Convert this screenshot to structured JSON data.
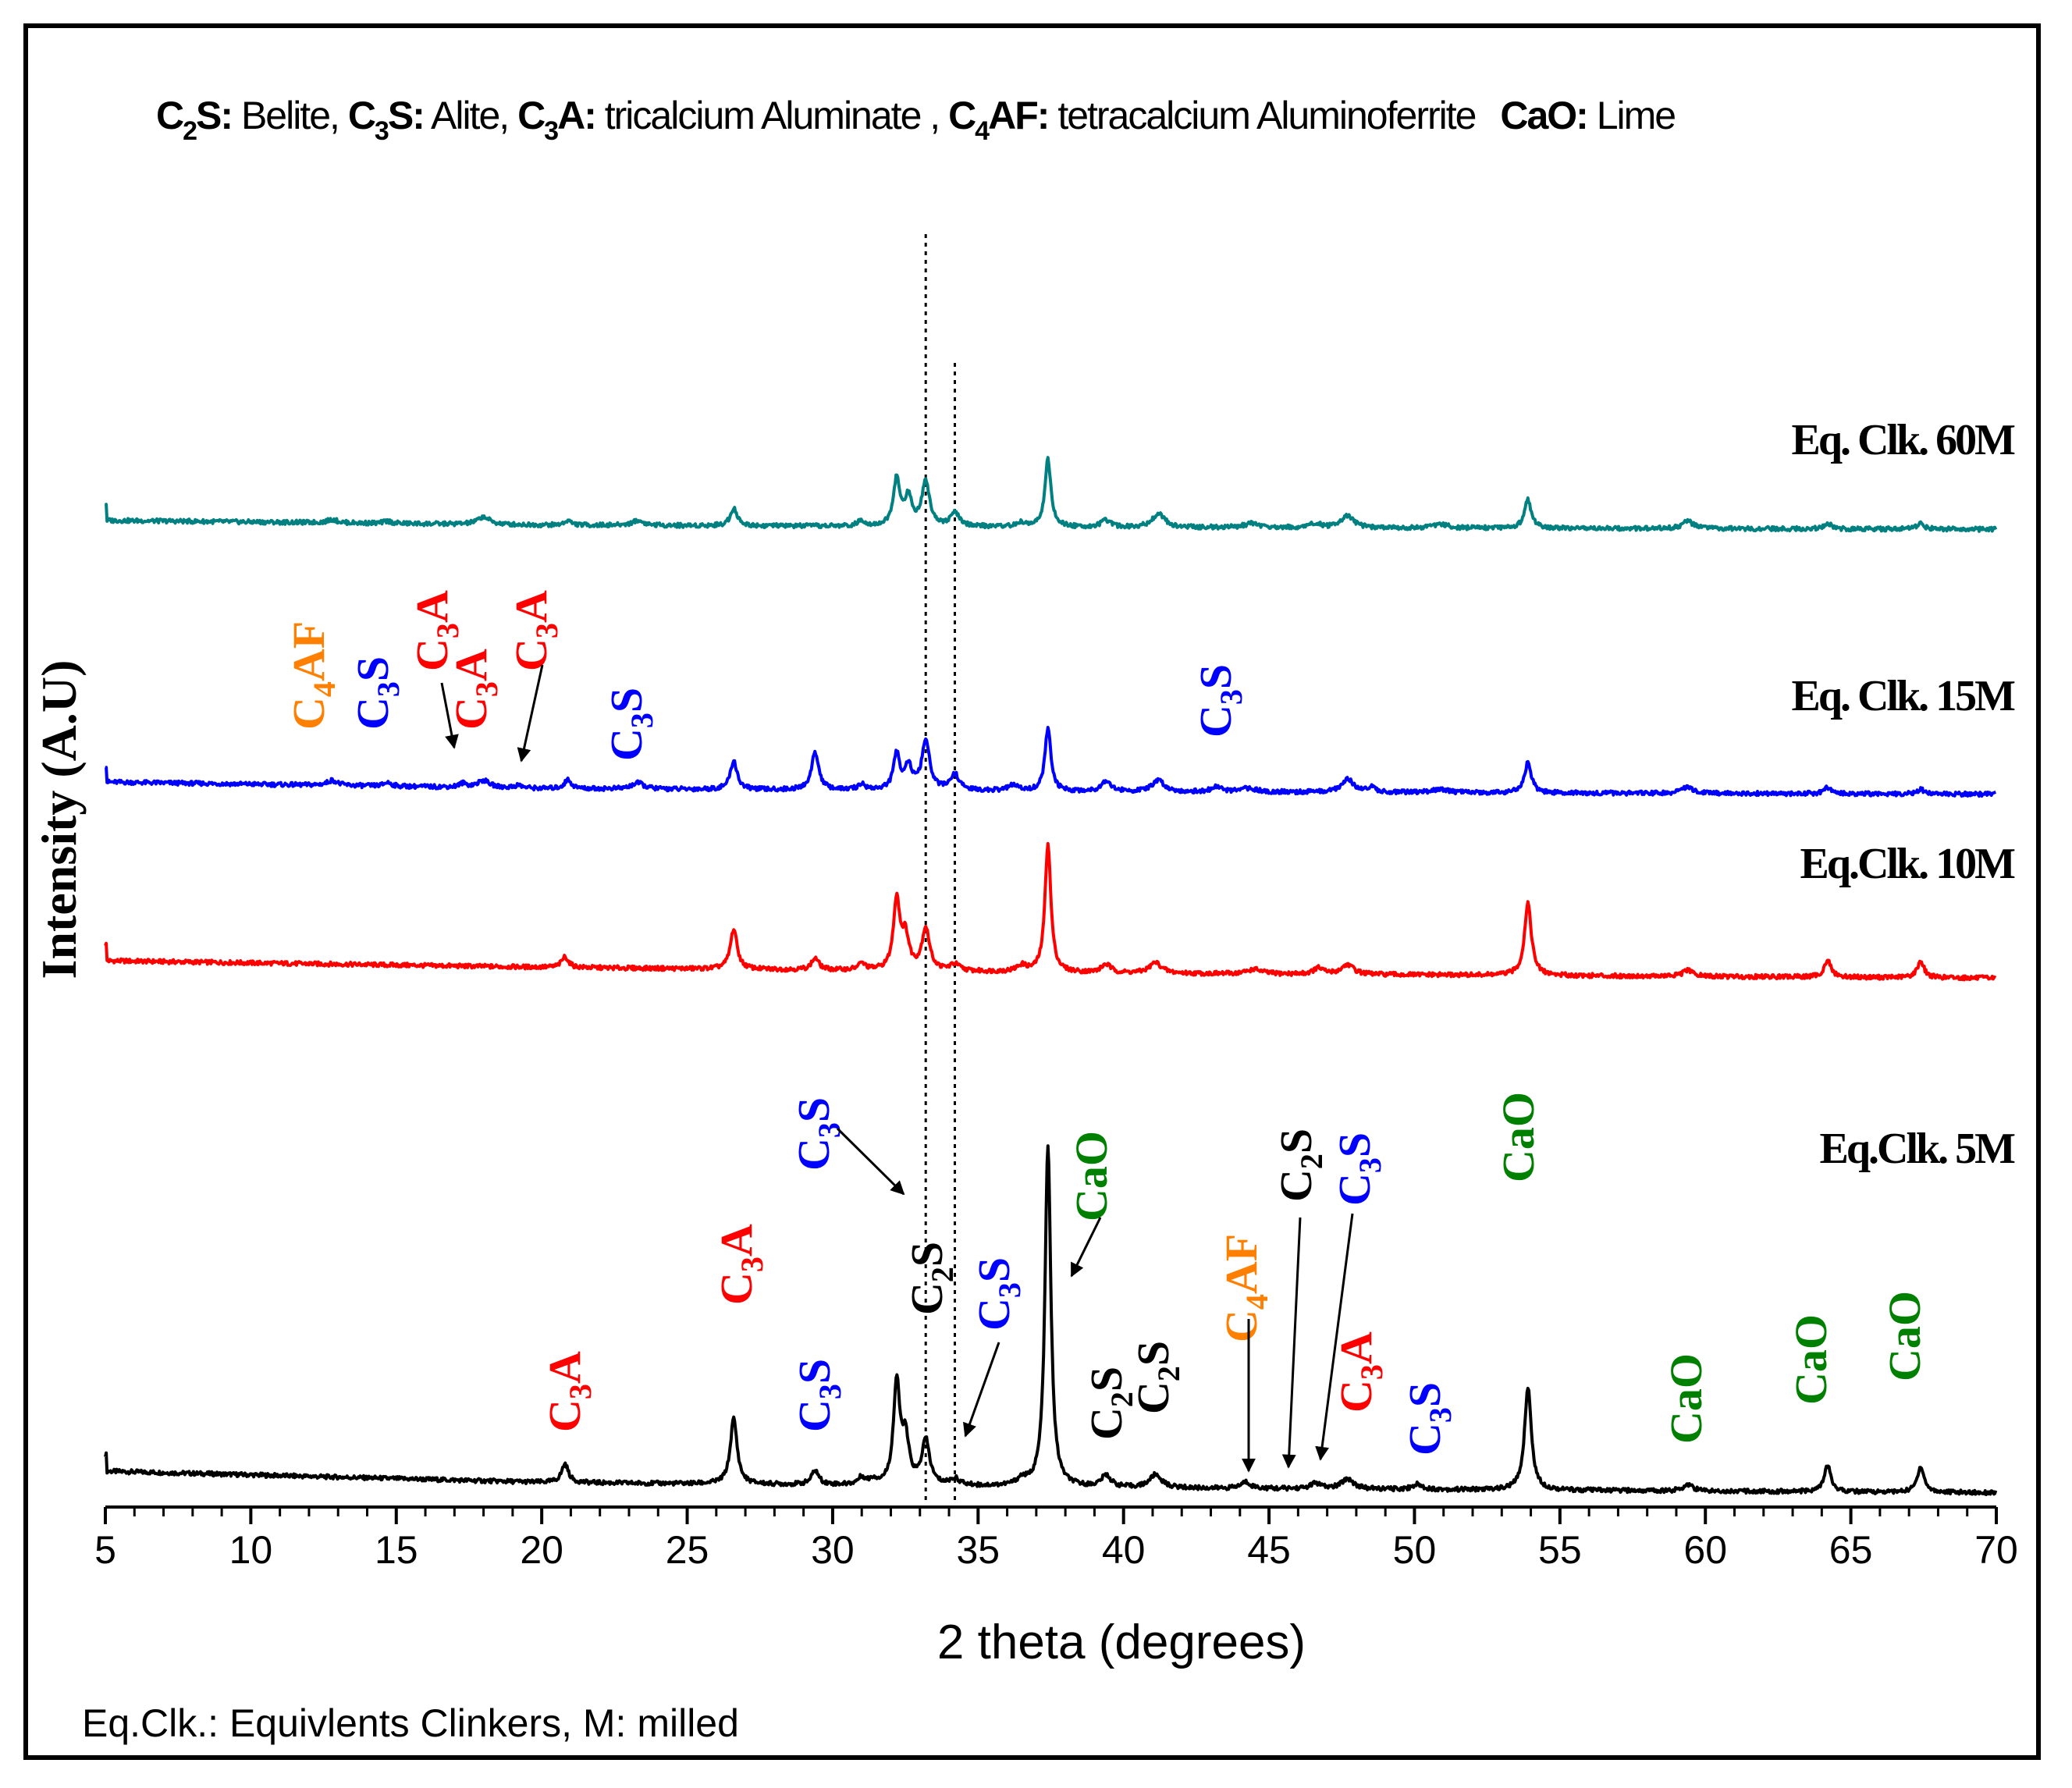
{
  "legend_text": {
    "c2s_code": "C2S:",
    "c2s_name": "Belite,",
    "c3s_code": "C3S:",
    "c3s_name": "Alite,",
    "c3a_code": "C3A:",
    "c3a_name": "tricalcium Aluminate ,",
    "c4af_code": "C4AF:",
    "c4af_name": "tetracalcium Aluminoferrite",
    "cao_code": "CaO:",
    "cao_name": "Lime"
  },
  "footnote": "Eq.Clk.:  Equivlents Clinkers, M: milled",
  "colors": {
    "c3a": "#ff0000",
    "c3s": "#0000ff",
    "c2s": "#000000",
    "c4af": "#ff8000",
    "cao": "#008000"
  },
  "chart_data": {
    "type": "line",
    "xlabel": "2 theta (degrees)",
    "ylabel": "Intensity (A.U)",
    "xlim": [
      5,
      70
    ],
    "ylim": [
      0,
      100
    ],
    "x_ticks": [
      5,
      10,
      15,
      20,
      25,
      30,
      35,
      40,
      45,
      50,
      55,
      60,
      65,
      70
    ],
    "reference_lines_2theta": [
      33.2,
      34.2
    ],
    "series": [
      {
        "name": "Eq.Clk. 5M",
        "color": "#000000",
        "baseline": [
          [
            5,
            5.0
          ],
          [
            20,
            2.6
          ],
          [
            40,
            1.4
          ],
          [
            70,
            0.4
          ]
        ],
        "peaks": [
          [
            20.8,
            4.0,
            0.14
          ],
          [
            26.6,
            14.0,
            0.14
          ],
          [
            29.4,
            3.0,
            0.15
          ],
          [
            31.0,
            1.5,
            0.15
          ],
          [
            31.4,
            1.0,
            0.15
          ],
          [
            32.2,
            21.5,
            0.13
          ],
          [
            32.5,
            9.5,
            0.15
          ],
          [
            33.2,
            9.5,
            0.16
          ],
          [
            34.2,
            1.4,
            0.2
          ],
          [
            36.5,
            1.3,
            0.2
          ],
          [
            37.4,
            73.0,
            0.12
          ],
          [
            39.4,
            2.5,
            0.2
          ],
          [
            41.1,
            2.8,
            0.25
          ],
          [
            44.2,
            1.4,
            0.2
          ],
          [
            46.6,
            1.2,
            0.2
          ],
          [
            47.7,
            2.2,
            0.25
          ],
          [
            50.1,
            1.1,
            0.2
          ],
          [
            53.9,
            22.0,
            0.14
          ],
          [
            59.4,
            1.4,
            0.2
          ],
          [
            64.2,
            5.5,
            0.14
          ],
          [
            67.4,
            5.5,
            0.14
          ]
        ]
      },
      {
        "name": "Eq.Clk. 10M",
        "color": "#ff0000",
        "baseline": [
          [
            5,
            4.0
          ],
          [
            20,
            2.6
          ],
          [
            40,
            1.3
          ],
          [
            70,
            0.3
          ]
        ],
        "peaks": [
          [
            20.8,
            2.3,
            0.14
          ],
          [
            26.6,
            8.6,
            0.14
          ],
          [
            29.4,
            2.5,
            0.15
          ],
          [
            31.0,
            1.4,
            0.15
          ],
          [
            32.2,
            15.0,
            0.13
          ],
          [
            32.5,
            7.0,
            0.15
          ],
          [
            33.2,
            9.0,
            0.16
          ],
          [
            34.2,
            1.4,
            0.2
          ],
          [
            36.5,
            1.3,
            0.2
          ],
          [
            37.4,
            27.5,
            0.12
          ],
          [
            39.4,
            1.8,
            0.2
          ],
          [
            41.1,
            2.3,
            0.25
          ],
          [
            44.5,
            1.0,
            0.3
          ],
          [
            46.7,
            1.3,
            0.2
          ],
          [
            47.7,
            2.1,
            0.25
          ],
          [
            53.9,
            15.6,
            0.14
          ],
          [
            59.4,
            1.3,
            0.2
          ],
          [
            64.2,
            3.6,
            0.14
          ],
          [
            67.4,
            3.5,
            0.14
          ]
        ]
      },
      {
        "name": "Eq. Clk. 15M",
        "color": "#0000ff",
        "baseline": [
          [
            5,
            3.0
          ],
          [
            20,
            1.6
          ],
          [
            40,
            0.9
          ],
          [
            70,
            0.4
          ]
        ],
        "peaks": [
          [
            12.8,
            1.1,
            0.2
          ],
          [
            14.7,
            0.8,
            0.15
          ],
          [
            17.3,
            0.8,
            0.15
          ],
          [
            18.0,
            1.5,
            0.25
          ],
          [
            19.2,
            0.6,
            0.15
          ],
          [
            20.9,
            1.9,
            0.14
          ],
          [
            23.3,
            1.3,
            0.25
          ],
          [
            26.6,
            6.1,
            0.14
          ],
          [
            29.4,
            8.0,
            0.15
          ],
          [
            31.0,
            1.2,
            0.15
          ],
          [
            32.2,
            7.5,
            0.13
          ],
          [
            32.6,
            5.0,
            0.15
          ],
          [
            33.2,
            10.5,
            0.16
          ],
          [
            34.2,
            3.4,
            0.18
          ],
          [
            36.2,
            1.2,
            0.2
          ],
          [
            37.4,
            13.5,
            0.12
          ],
          [
            39.4,
            2.3,
            0.2
          ],
          [
            41.2,
            2.4,
            0.25
          ],
          [
            43.2,
            1.1,
            0.2
          ],
          [
            44.3,
            0.8,
            0.3
          ],
          [
            47.7,
            2.8,
            0.25
          ],
          [
            48.5,
            1.0,
            0.2
          ],
          [
            50.9,
            0.7,
            0.3
          ],
          [
            53.9,
            6.5,
            0.14
          ],
          [
            59.4,
            1.5,
            0.2
          ],
          [
            64.2,
            1.4,
            0.14
          ],
          [
            67.4,
            1.0,
            0.14
          ]
        ]
      },
      {
        "name": "Eq. Clk. 60M",
        "color": "#008080",
        "baseline": [
          [
            5,
            2.2
          ],
          [
            20,
            1.2
          ],
          [
            40,
            0.7
          ],
          [
            70,
            0.3
          ]
        ],
        "peaks": [
          [
            12.8,
            0.7,
            0.2
          ],
          [
            14.7,
            0.5,
            0.15
          ],
          [
            18.0,
            1.6,
            0.25
          ],
          [
            20.9,
            1.0,
            0.14
          ],
          [
            23.3,
            1.0,
            0.25
          ],
          [
            26.6,
            3.8,
            0.14
          ],
          [
            31.0,
            1.2,
            0.15
          ],
          [
            32.2,
            10.0,
            0.13
          ],
          [
            32.6,
            6.0,
            0.15
          ],
          [
            33.2,
            9.5,
            0.16
          ],
          [
            34.2,
            2.8,
            0.18
          ],
          [
            36.5,
            0.8,
            0.2
          ],
          [
            37.4,
            14.5,
            0.12
          ],
          [
            39.4,
            1.4,
            0.2
          ],
          [
            41.2,
            3.0,
            0.25
          ],
          [
            44.4,
            0.9,
            0.3
          ],
          [
            46.6,
            1.0,
            0.2
          ],
          [
            47.7,
            2.6,
            0.25
          ],
          [
            50.9,
            0.8,
            0.3
          ],
          [
            53.9,
            6.1,
            0.14
          ],
          [
            59.4,
            1.7,
            0.2
          ],
          [
            64.2,
            1.3,
            0.14
          ],
          [
            67.4,
            1.2,
            0.14
          ]
        ]
      }
    ],
    "series_labels": [
      "Eq. Clk. 60M",
      "Eq. Clk. 15M",
      "Eq.Clk. 10M",
      "Eq.Clk. 5M"
    ],
    "annotations": [
      {
        "phase": "C4AF",
        "base": "C",
        "sub": "4",
        "rest": "AF",
        "color_key": "c4af",
        "two_theta": 12.8,
        "on_series": "Eq. Clk. 15M"
      },
      {
        "phase": "C3S",
        "base": "C",
        "sub": "3",
        "rest": "S",
        "color_key": "c3s",
        "two_theta": 14.8,
        "on_series": "Eq. Clk. 15M"
      },
      {
        "phase": "C3A",
        "base": "C",
        "sub": "3",
        "rest": "A",
        "color_key": "c3a",
        "two_theta": 17.3,
        "on_series": "Eq. Clk. 15M"
      },
      {
        "phase": "C3A",
        "base": "C",
        "sub": "3",
        "rest": "A",
        "color_key": "c3a",
        "two_theta": 17.9,
        "on_series": "Eq. Clk. 15M"
      },
      {
        "phase": "C3A",
        "base": "C",
        "sub": "3",
        "rest": "A",
        "color_key": "c3a",
        "two_theta": 19.5,
        "on_series": "Eq. Clk. 15M"
      },
      {
        "phase": "C3S",
        "base": "C",
        "sub": "3",
        "rest": "S",
        "color_key": "c3s",
        "two_theta": 23.3,
        "on_series": "Eq. Clk. 15M"
      },
      {
        "phase": "C3S",
        "base": "C",
        "sub": "3",
        "rest": "S",
        "color_key": "c3s",
        "two_theta": 43.2,
        "on_series": "Eq. Clk. 15M"
      },
      {
        "phase": "C3A",
        "base": "C",
        "sub": "3",
        "rest": "A",
        "color_key": "c3a",
        "two_theta": 20.8,
        "on_series": "Eq.Clk. 5M"
      },
      {
        "phase": "C3A",
        "base": "C",
        "sub": "3",
        "rest": "A",
        "color_key": "c3a",
        "two_theta": 26.6,
        "on_series": "Eq.Clk. 5M"
      },
      {
        "phase": "C3S",
        "base": "C",
        "sub": "3",
        "rest": "S",
        "color_key": "c3s",
        "two_theta": 29.4,
        "on_series": "Eq.Clk. 5M"
      },
      {
        "phase": "C3S",
        "base": "C",
        "sub": "3",
        "rest": "S",
        "color_key": "c3s",
        "two_theta": 32.2,
        "on_series": "Eq.Clk. 5M"
      },
      {
        "phase": "C2S",
        "base": "C",
        "sub": "2",
        "rest": "S",
        "color_key": "c2s",
        "two_theta": 33.1,
        "on_series": "Eq.Clk. 5M"
      },
      {
        "phase": "C3S",
        "base": "C",
        "sub": "3",
        "rest": "S",
        "color_key": "c3s",
        "two_theta": 34.2,
        "on_series": "Eq.Clk. 5M"
      },
      {
        "phase": "CaO",
        "base": "CaO",
        "sub": "",
        "rest": "",
        "color_key": "cao",
        "two_theta": 37.4,
        "on_series": "Eq.Clk. 5M"
      },
      {
        "phase": "C2S",
        "base": "C",
        "sub": "2",
        "rest": "S",
        "color_key": "c2s",
        "two_theta": 39.4,
        "on_series": "Eq.Clk. 5M"
      },
      {
        "phase": "C2S",
        "base": "C",
        "sub": "2",
        "rest": "S",
        "color_key": "c2s",
        "two_theta": 41.1,
        "on_series": "Eq.Clk. 5M"
      },
      {
        "phase": "C4AF",
        "base": "C",
        "sub": "4",
        "rest": "AF",
        "color_key": "c4af",
        "two_theta": 44.2,
        "on_series": "Eq.Clk. 5M"
      },
      {
        "phase": "C2S",
        "base": "C",
        "sub": "2",
        "rest": "S",
        "color_key": "c2s",
        "two_theta": 45.6,
        "on_series": "Eq.Clk. 5M"
      },
      {
        "phase": "C3S",
        "base": "C",
        "sub": "3",
        "rest": "S",
        "color_key": "c3s",
        "two_theta": 46.6,
        "on_series": "Eq.Clk. 5M"
      },
      {
        "phase": "C3A",
        "base": "C",
        "sub": "3",
        "rest": "A",
        "color_key": "c3a",
        "two_theta": 47.7,
        "on_series": "Eq.Clk. 5M"
      },
      {
        "phase": "C3S",
        "base": "C",
        "sub": "3",
        "rest": "S",
        "color_key": "c3s",
        "two_theta": 50.1,
        "on_series": "Eq.Clk. 5M"
      },
      {
        "phase": "CaO",
        "base": "CaO",
        "sub": "",
        "rest": "",
        "color_key": "cao",
        "two_theta": 53.9,
        "on_series": "Eq.Clk. 5M"
      },
      {
        "phase": "CaO",
        "base": "CaO",
        "sub": "",
        "rest": "",
        "color_key": "cao",
        "two_theta": 59.4,
        "on_series": "Eq.Clk. 5M"
      },
      {
        "phase": "CaO",
        "base": "CaO",
        "sub": "",
        "rest": "",
        "color_key": "cao",
        "two_theta": 64.2,
        "on_series": "Eq.Clk. 5M"
      },
      {
        "phase": "CaO",
        "base": "CaO",
        "sub": "",
        "rest": "",
        "color_key": "cao",
        "two_theta": 67.4,
        "on_series": "Eq.Clk. 5M"
      }
    ]
  }
}
